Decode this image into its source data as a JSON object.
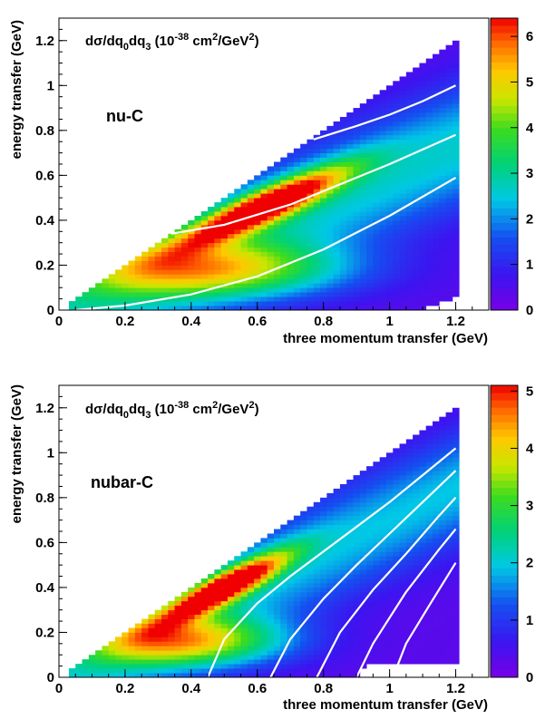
{
  "chart_data": [
    {
      "type": "heatmap",
      "title": "dσ/dq0dq3 (10-38 cm2/GeV2)",
      "title_parts": {
        "main": "dσ/dq",
        "sub0": "0",
        "mid": "dq",
        "sub3": "3",
        "open": " (10",
        "exp1": "-38",
        "unit": " cm",
        "exp2": "2",
        "unit2": "/GeV",
        "exp3": "2",
        "close": ")"
      },
      "annotation": "nu-C",
      "xlabel": "three momentum transfer (GeV)",
      "ylabel": "energy transfer (GeV)",
      "xlim": [
        0,
        1.3
      ],
      "ylim": [
        0,
        1.3
      ],
      "xticks": [
        "0",
        "0.2",
        "0.4",
        "0.6",
        "0.8",
        "1",
        "1.2"
      ],
      "xtick_values": [
        0,
        0.2,
        0.4,
        0.6,
        0.8,
        1.0,
        1.2
      ],
      "yticks": [
        "0",
        "0.2",
        "0.4",
        "0.6",
        "0.8",
        "1",
        "1.2"
      ],
      "ytick_values": [
        0,
        0.2,
        0.4,
        0.6,
        0.8,
        1.0,
        1.2
      ],
      "zlim": [
        0,
        6.4
      ],
      "zticks": [
        "0",
        "1",
        "2",
        "3",
        "4",
        "5",
        "6"
      ],
      "ztick_values": [
        0,
        1,
        2,
        3,
        4,
        5,
        6
      ],
      "peak": {
        "q3": 0.62,
        "q0": 0.46,
        "value": 6.2
      },
      "curves": [
        {
          "x": [
            0.05,
            0.2,
            0.4,
            0.6,
            0.8,
            1.0,
            1.2
          ],
          "y": [
            0.0,
            0.02,
            0.07,
            0.15,
            0.27,
            0.42,
            0.59
          ]
        },
        {
          "x": [
            0.34,
            0.5,
            0.7,
            0.9,
            1.0,
            1.2
          ],
          "y": [
            0.34,
            0.38,
            0.47,
            0.59,
            0.65,
            0.78
          ]
        },
        {
          "x": [
            0.77,
            0.9,
            1.0,
            1.1,
            1.2
          ],
          "y": [
            0.76,
            0.82,
            0.87,
            0.93,
            1.0
          ]
        }
      ],
      "grid": false,
      "colorbar": "right"
    },
    {
      "type": "heatmap",
      "title": "dσ/dq0dq3 (10-38 cm2/GeV2)",
      "title_parts": {
        "main": "dσ/dq",
        "sub0": "0",
        "mid": "dq",
        "sub3": "3",
        "open": " (10",
        "exp1": "-38",
        "unit": " cm",
        "exp2": "2",
        "unit2": "/GeV",
        "exp3": "2",
        "close": ")"
      },
      "annotation": "nubar-C",
      "xlabel": "three momentum transfer (GeV)",
      "ylabel": "energy transfer (GeV)",
      "xlim": [
        0,
        1.3
      ],
      "ylim": [
        0,
        1.3
      ],
      "xticks": [
        "0",
        "0.2",
        "0.4",
        "0.6",
        "0.8",
        "1",
        "1.2"
      ],
      "xtick_values": [
        0,
        0.2,
        0.4,
        0.6,
        0.8,
        1.0,
        1.2
      ],
      "yticks": [
        "0",
        "0.2",
        "0.4",
        "0.6",
        "0.8",
        "1",
        "1.2"
      ],
      "ytick_values": [
        0,
        0.2,
        0.4,
        0.6,
        0.8,
        1.0,
        1.2
      ],
      "zlim": [
        0,
        5.1
      ],
      "zticks": [
        "0",
        "1",
        "2",
        "3",
        "4",
        "5"
      ],
      "ztick_values": [
        0,
        1,
        2,
        3,
        4,
        5
      ],
      "peak": {
        "q3": 0.5,
        "q0": 0.4,
        "value": 5.0
      },
      "curves": [
        {
          "x": [
            0.45,
            0.5,
            0.6,
            0.7,
            0.8,
            0.9,
            1.0,
            1.1,
            1.2
          ],
          "y": [
            0.0,
            0.17,
            0.33,
            0.45,
            0.56,
            0.67,
            0.78,
            0.9,
            1.02
          ]
        },
        {
          "x": [
            0.64,
            0.7,
            0.8,
            0.9,
            1.0,
            1.1,
            1.2
          ],
          "y": [
            0.0,
            0.17,
            0.35,
            0.5,
            0.64,
            0.78,
            0.92
          ]
        },
        {
          "x": [
            0.78,
            0.85,
            0.95,
            1.05,
            1.15,
            1.2
          ],
          "y": [
            0.0,
            0.2,
            0.39,
            0.55,
            0.72,
            0.8
          ]
        },
        {
          "x": [
            0.9,
            0.95,
            1.05,
            1.15,
            1.2
          ],
          "y": [
            0.0,
            0.15,
            0.38,
            0.57,
            0.66
          ]
        },
        {
          "x": [
            1.01,
            1.05,
            1.12,
            1.2
          ],
          "y": [
            0.0,
            0.15,
            0.32,
            0.51
          ]
        }
      ],
      "grid": false,
      "colorbar": "right"
    }
  ]
}
